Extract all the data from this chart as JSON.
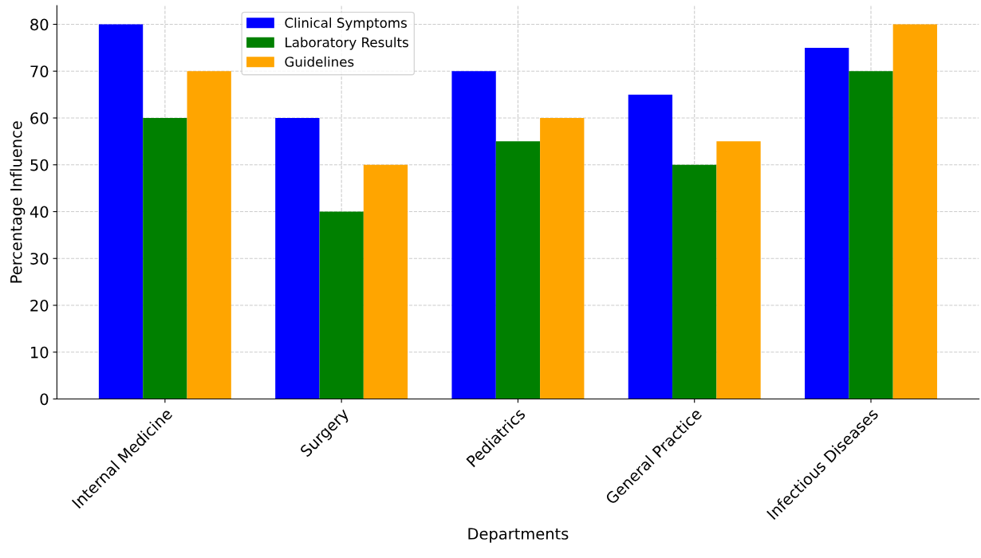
{
  "chart_data": {
    "type": "bar",
    "xlabel": "Departments",
    "ylabel": "Percentage Influence",
    "categories": [
      "Internal Medicine",
      "Surgery",
      "Pediatrics",
      "General Practice",
      "Infectious Diseases"
    ],
    "series": [
      {
        "name": "Clinical Symptoms",
        "color": "#0000ff",
        "values": [
          80,
          60,
          70,
          65,
          75
        ]
      },
      {
        "name": "Laboratory Results",
        "color": "#008000",
        "values": [
          60,
          40,
          55,
          50,
          70
        ]
      },
      {
        "name": "Guidelines",
        "color": "#ffa500",
        "values": [
          70,
          50,
          60,
          55,
          80
        ]
      }
    ],
    "ylim": [
      0,
      84
    ],
    "yticks": [
      0,
      10,
      20,
      30,
      40,
      50,
      60,
      70,
      80
    ],
    "grid": true,
    "legend": "top"
  }
}
